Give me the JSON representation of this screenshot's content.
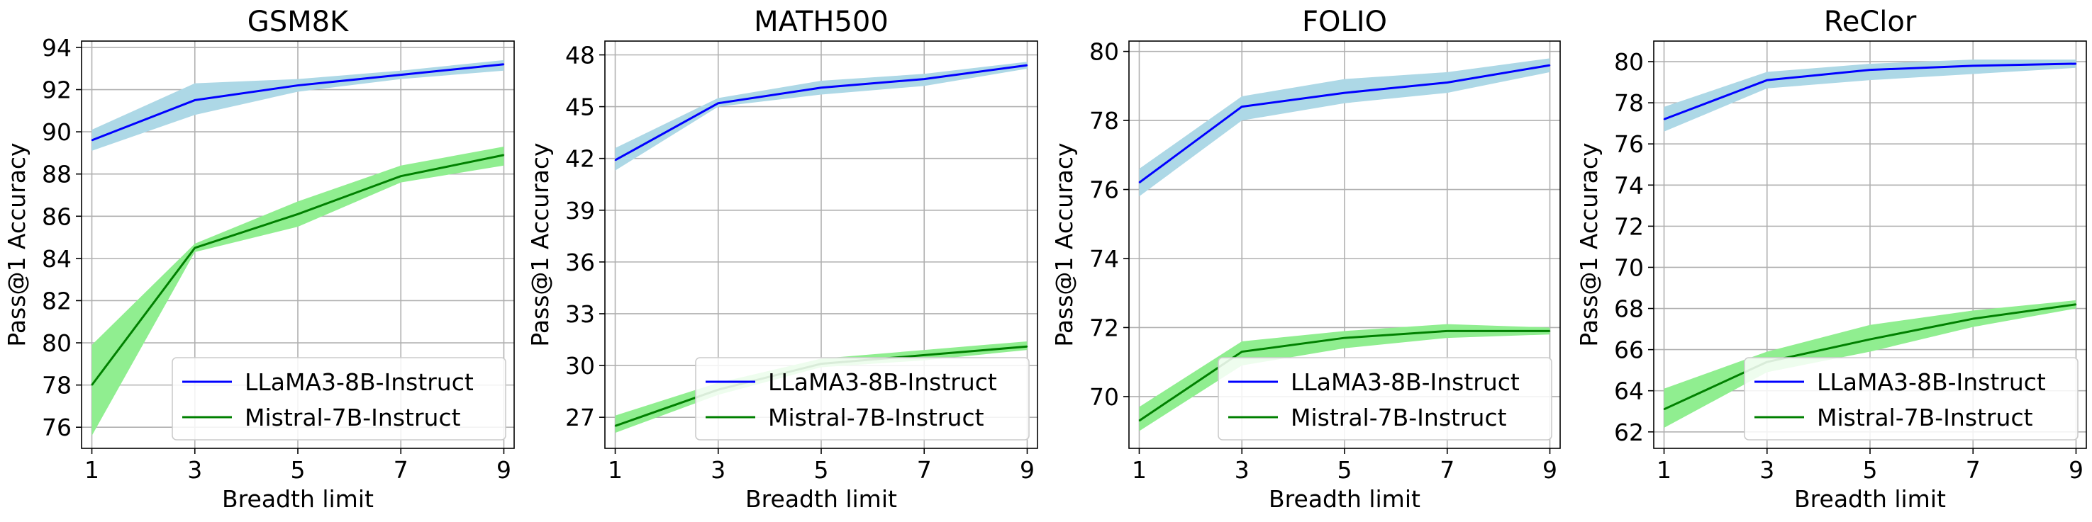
{
  "chart_data": [
    {
      "type": "line",
      "title": "GSM8K",
      "xlabel": "Breadth limit",
      "ylabel": "Pass@1 Accuracy",
      "xlim": [
        0.8,
        9.2
      ],
      "ylim": [
        75.0,
        94.3
      ],
      "xticks": [
        1,
        3,
        5,
        7,
        9
      ],
      "yticks": [
        76,
        78,
        80,
        82,
        84,
        86,
        88,
        90,
        92,
        94
      ],
      "grid": true,
      "legend_position": "bottom-right",
      "series": [
        {
          "name": "LLaMA3-8B-Instruct",
          "color": "#0000ff",
          "band_color": "#add8e6",
          "x": [
            1,
            3,
            5,
            7,
            9
          ],
          "y": [
            89.6,
            91.5,
            92.2,
            92.7,
            93.2
          ],
          "lower": [
            89.1,
            90.8,
            91.9,
            92.5,
            92.9
          ],
          "upper": [
            90.1,
            92.3,
            92.5,
            92.9,
            93.4
          ]
        },
        {
          "name": "Mistral-7B-Instruct",
          "color": "#008000",
          "band_color": "#90ee90",
          "x": [
            1,
            3,
            5,
            7,
            9
          ],
          "y": [
            78.0,
            84.5,
            86.1,
            87.9,
            88.9
          ],
          "lower": [
            75.6,
            84.3,
            85.5,
            87.6,
            88.4
          ],
          "upper": [
            79.9,
            84.7,
            86.7,
            88.4,
            89.3
          ]
        }
      ]
    },
    {
      "type": "line",
      "title": "MATH500",
      "xlabel": "Breadth limit",
      "ylabel": "Pass@1 Accuracy",
      "xlim": [
        0.8,
        9.2
      ],
      "ylim": [
        25.2,
        48.8
      ],
      "xticks": [
        1,
        3,
        5,
        7,
        9
      ],
      "yticks": [
        27,
        30,
        33,
        36,
        39,
        42,
        45,
        48
      ],
      "grid": true,
      "legend_position": "bottom-right",
      "series": [
        {
          "name": "LLaMA3-8B-Instruct",
          "color": "#0000ff",
          "band_color": "#add8e6",
          "x": [
            1,
            3,
            5,
            7,
            9
          ],
          "y": [
            41.9,
            45.2,
            46.1,
            46.6,
            47.4
          ],
          "lower": [
            41.3,
            45.0,
            45.7,
            46.2,
            47.2
          ],
          "upper": [
            42.6,
            45.5,
            46.5,
            46.9,
            47.6
          ]
        },
        {
          "name": "Mistral-7B-Instruct",
          "color": "#008000",
          "band_color": "#90ee90",
          "x": [
            1,
            3,
            5,
            7,
            9
          ],
          "y": [
            26.5,
            28.6,
            30.1,
            30.6,
            31.1
          ],
          "lower": [
            26.1,
            28.3,
            29.9,
            30.3,
            30.9
          ],
          "upper": [
            27.1,
            29.0,
            30.4,
            30.9,
            31.4
          ]
        }
      ]
    },
    {
      "type": "line",
      "title": "FOLIO",
      "xlabel": "Breadth limit",
      "ylabel": "Pass@1 Accuracy",
      "xlim": [
        0.8,
        9.2
      ],
      "ylim": [
        68.5,
        80.3
      ],
      "xticks": [
        1,
        3,
        5,
        7,
        9
      ],
      "yticks": [
        70,
        72,
        74,
        76,
        78,
        80
      ],
      "grid": true,
      "legend_position": "bottom-right",
      "series": [
        {
          "name": "LLaMA3-8B-Instruct",
          "color": "#0000ff",
          "band_color": "#add8e6",
          "x": [
            1,
            3,
            5,
            7,
            9
          ],
          "y": [
            76.2,
            78.4,
            78.8,
            79.1,
            79.6
          ],
          "lower": [
            75.8,
            78.0,
            78.5,
            78.8,
            79.4
          ],
          "upper": [
            76.6,
            78.7,
            79.2,
            79.4,
            79.8
          ]
        },
        {
          "name": "Mistral-7B-Instruct",
          "color": "#008000",
          "band_color": "#90ee90",
          "x": [
            1,
            3,
            5,
            7,
            9
          ],
          "y": [
            69.3,
            71.3,
            71.7,
            71.9,
            71.9
          ],
          "lower": [
            69.0,
            70.9,
            71.4,
            71.7,
            71.8
          ],
          "upper": [
            69.7,
            71.6,
            71.9,
            72.1,
            72.0
          ]
        }
      ]
    },
    {
      "type": "line",
      "title": "ReClor",
      "xlabel": "Breadth limit",
      "ylabel": "Pass@1 Accuracy",
      "xlim": [
        0.8,
        9.2
      ],
      "ylim": [
        61.2,
        81.0
      ],
      "xticks": [
        1,
        3,
        5,
        7,
        9
      ],
      "yticks": [
        62,
        64,
        66,
        68,
        70,
        72,
        74,
        76,
        78,
        80
      ],
      "grid": true,
      "legend_position": "bottom-right",
      "series": [
        {
          "name": "LLaMA3-8B-Instruct",
          "color": "#0000ff",
          "band_color": "#add8e6",
          "x": [
            1,
            3,
            5,
            7,
            9
          ],
          "y": [
            77.2,
            79.1,
            79.6,
            79.8,
            79.9
          ],
          "lower": [
            76.6,
            78.7,
            79.1,
            79.4,
            79.7
          ],
          "upper": [
            77.8,
            79.5,
            79.9,
            80.1,
            80.1
          ]
        },
        {
          "name": "Mistral-7B-Instruct",
          "color": "#008000",
          "band_color": "#90ee90",
          "x": [
            1,
            3,
            5,
            7,
            9
          ],
          "y": [
            63.1,
            65.4,
            66.5,
            67.5,
            68.2
          ],
          "lower": [
            62.2,
            64.9,
            65.9,
            67.1,
            68.0
          ],
          "upper": [
            64.1,
            65.9,
            67.2,
            67.9,
            68.4
          ]
        }
      ]
    }
  ]
}
